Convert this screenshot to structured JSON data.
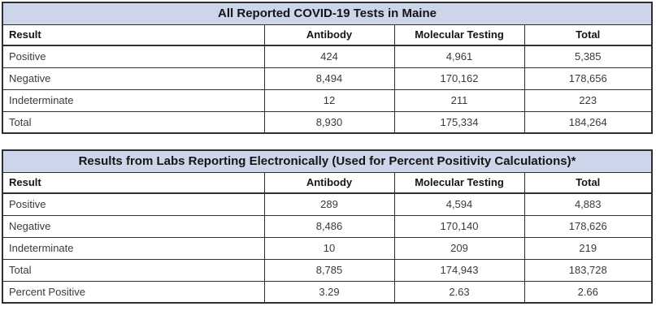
{
  "colors": {
    "title_bar_background": "#ccd5ea",
    "border": "#2f2f2f",
    "header_text": "#151515",
    "data_text": "#3a3a3a",
    "page_background": "#ffffff"
  },
  "chart_data": [
    {
      "type": "table",
      "title": "All Reported COVID-19 Tests in Maine",
      "columns": [
        "Result",
        "Antibody",
        "Molecular Testing",
        "Total"
      ],
      "rows": [
        [
          "Positive",
          "424",
          "4,961",
          "5,385"
        ],
        [
          "Negative",
          "8,494",
          "170,162",
          "178,656"
        ],
        [
          "Indeterminate",
          "12",
          "211",
          "223"
        ],
        [
          "Total",
          "8,930",
          "175,334",
          "184,264"
        ]
      ],
      "layout": {
        "title_alignment": "center",
        "label_column_alignment": "left",
        "value_alignment": "center"
      }
    },
    {
      "type": "table",
      "title": "Results from Labs Reporting Electronically (Used for Percent Positivity Calculations)*",
      "columns": [
        "Result",
        "Antibody",
        "Molecular Testing",
        "Total"
      ],
      "rows": [
        [
          "Positive",
          "289",
          "4,594",
          "4,883"
        ],
        [
          "Negative",
          "8,486",
          "170,140",
          "178,626"
        ],
        [
          "Indeterminate",
          "10",
          "209",
          "219"
        ],
        [
          "Total",
          "8,785",
          "174,943",
          "183,728"
        ],
        [
          "Percent Positive",
          "3.29",
          "2.63",
          "2.66"
        ]
      ],
      "layout": {
        "title_alignment": "center",
        "label_column_alignment": "left",
        "value_alignment": "center"
      }
    }
  ]
}
